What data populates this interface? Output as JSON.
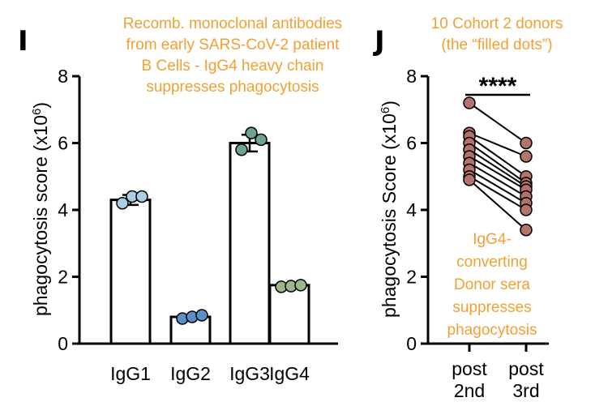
{
  "chart_data": [
    {
      "panel": "I",
      "type": "bar",
      "title": "Recomb. monoclonal antibodies from early SARS-CoV-2 patient B Cells - IgG4 heavy chain suppresses phagocytosis",
      "title_lines": [
        "Recomb. monoclonal antibodies",
        "from early SARS-CoV-2 patient",
        "B Cells - IgG4 heavy chain",
        "suppresses phagocytosis"
      ],
      "ylabel_main": "phagocytosis score (x10",
      "ylabel_sup": "6",
      "ylabel_end": ")",
      "ylim": [
        0,
        8
      ],
      "yticks": [
        "0",
        "2",
        "4",
        "6",
        "8"
      ],
      "categories": [
        "IgG1",
        "IgG2",
        "IgG3",
        "IgG4"
      ],
      "values": [
        4.3,
        0.8,
        6.0,
        1.75
      ],
      "error": [
        0.15,
        0.05,
        0.25,
        0.05
      ],
      "points": [
        [
          4.2,
          4.4,
          4.4
        ],
        [
          0.75,
          0.8,
          0.85
        ],
        [
          5.8,
          6.3,
          6.1
        ],
        [
          1.7,
          1.72,
          1.75
        ]
      ],
      "point_colors": [
        "#a9cfe4",
        "#5b8fc8",
        "#6ba394",
        "#9cb88a"
      ]
    },
    {
      "panel": "J",
      "type": "scatter",
      "title": "10 Cohort 2 donors (the “filled dots”)",
      "title_lines": [
        "10 Cohort 2 donors",
        "(the “filled dots”)"
      ],
      "ylabel_main": "phagocytosis Score (x10",
      "ylabel_sup": "6",
      "ylabel_end": ")",
      "ylim": [
        0,
        8
      ],
      "yticks": [
        "0",
        "2",
        "4",
        "6",
        "8"
      ],
      "x_lines": [
        [
          "post",
          "2nd"
        ],
        [
          "post",
          "3rd"
        ]
      ],
      "significance": "****",
      "annotation_lines": [
        "IgG4-",
        "converting",
        "Donor sera",
        "suppresses",
        "phagocytosis"
      ],
      "point_color": "#b5736b",
      "pairs": [
        [
          7.2,
          6.0
        ],
        [
          6.3,
          5.6
        ],
        [
          6.2,
          5.0
        ],
        [
          6.0,
          4.8
        ],
        [
          5.8,
          4.7
        ],
        [
          5.6,
          4.6
        ],
        [
          5.4,
          4.4
        ],
        [
          5.2,
          4.2
        ],
        [
          5.0,
          4.0
        ],
        [
          4.9,
          3.4
        ]
      ]
    }
  ]
}
